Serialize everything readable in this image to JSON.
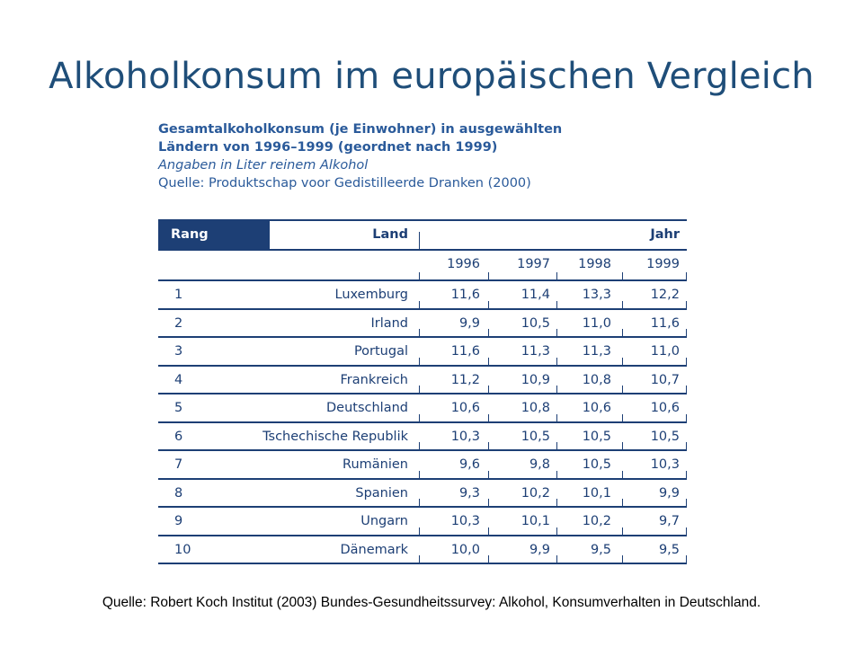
{
  "title": "Alkoholkonsum im europäischen Vergleich",
  "caption": {
    "line1": "Gesamtalkoholkonsum (je Einwohner) in ausgewählten",
    "line2": "Ländern von 1996–1999 (geordnet nach 1999)",
    "line3": "Angaben in Liter reinem Alkohol",
    "line4": "Quelle: Produktschap voor Gedistilleerde Dranken (2000)"
  },
  "table": {
    "header": {
      "rang": "Rang",
      "land": "Land",
      "jahr": "Jahr"
    },
    "years": [
      "1996",
      "1997",
      "1998",
      "1999"
    ],
    "rows": [
      {
        "rank": "1",
        "land": "Luxemburg",
        "values": [
          "11,6",
          "11,4",
          "13,3",
          "12,2"
        ]
      },
      {
        "rank": "2",
        "land": "Irland",
        "values": [
          "9,9",
          "10,5",
          "11,0",
          "11,6"
        ]
      },
      {
        "rank": "3",
        "land": "Portugal",
        "values": [
          "11,6",
          "11,3",
          "11,3",
          "11,0"
        ]
      },
      {
        "rank": "4",
        "land": "Frankreich",
        "values": [
          "11,2",
          "10,9",
          "10,8",
          "10,7"
        ]
      },
      {
        "rank": "5",
        "land": "Deutschland",
        "values": [
          "10,6",
          "10,8",
          "10,6",
          "10,6"
        ]
      },
      {
        "rank": "6",
        "land": "Tschechische Republik",
        "values": [
          "10,3",
          "10,5",
          "10,5",
          "10,5"
        ]
      },
      {
        "rank": "7",
        "land": "Rumänien",
        "values": [
          "9,6",
          "9,8",
          "10,5",
          "10,3"
        ]
      },
      {
        "rank": "8",
        "land": "Spanien",
        "values": [
          "9,3",
          "10,2",
          "10,1",
          "9,9"
        ]
      },
      {
        "rank": "9",
        "land": "Ungarn",
        "values": [
          "10,3",
          "10,1",
          "10,2",
          "9,7"
        ]
      },
      {
        "rank": "10",
        "land": "Dänemark",
        "values": [
          "10,0",
          "9,9",
          "9,5",
          "9,5"
        ]
      }
    ]
  },
  "footer": "Quelle: Robert Koch Institut (2003) Bundes-Gesundheitssurvey: Alkohol, Konsumverhalten in Deutschland.",
  "colors": {
    "title": "#1f4e79",
    "table": "#1d3f75",
    "caption": "#2a5a9a"
  }
}
